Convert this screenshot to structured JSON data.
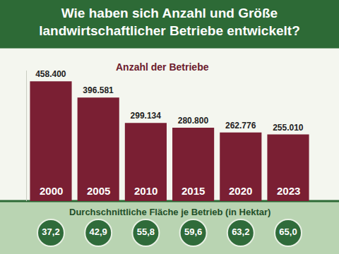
{
  "chart_data": [
    {
      "type": "bar",
      "title": "Wie haben sich Anzahl und Größe landwirtschaftlicher Betriebe entwickelt?",
      "subtitle": "Anzahl der Betriebe",
      "categories": [
        "2000",
        "2005",
        "2010",
        "2015",
        "2020",
        "2023"
      ],
      "values": [
        458400,
        396581,
        299134,
        280800,
        262776,
        255010
      ],
      "value_labels": [
        "458.400",
        "396.581",
        "299.134",
        "280.800",
        "262.776",
        "255.010"
      ],
      "color": "#7a1f33",
      "ylim": [
        0,
        500000
      ],
      "grid": false,
      "data_labels": true,
      "tick_labels": false
    },
    {
      "type": "circles",
      "title": "Durchschnittliche Fläche je Betrieb (in Hektar)",
      "values": [
        37.2,
        42.9,
        55.8,
        59.6,
        63.2,
        65.0
      ],
      "value_labels": [
        "37,2",
        "42,9",
        "55,8",
        "59,6",
        "63,2",
        "65,0"
      ],
      "color": "#2f6b3a",
      "data_labels": true,
      "tick_labels": false
    }
  ]
}
